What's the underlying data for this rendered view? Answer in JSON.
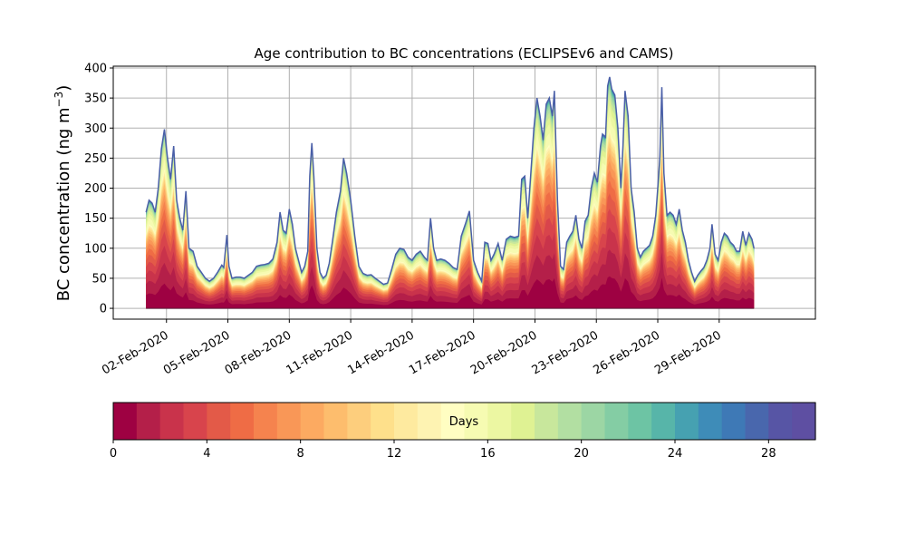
{
  "chart_data": {
    "type": "area",
    "title": "Age contribution to BC concentrations (ECLIPSEv6 and CAMS)",
    "ylabel": "BC concentration (ng m",
    "ylabel_sup": "−3",
    "ylabel_close": ")",
    "xlabel": "",
    "ylim": [
      -18,
      403
    ],
    "yticks": [
      0,
      50,
      100,
      150,
      200,
      250,
      300,
      350,
      400
    ],
    "xlim": [
      -1.6,
      32.7
    ],
    "xticks": [
      {
        "day": 1,
        "label": "02-Feb-2020"
      },
      {
        "day": 4,
        "label": "05-Feb-2020"
      },
      {
        "day": 7,
        "label": "08-Feb-2020"
      },
      {
        "day": 10,
        "label": "11-Feb-2020"
      },
      {
        "day": 13,
        "label": "14-Feb-2020"
      },
      {
        "day": 16,
        "label": "17-Feb-2020"
      },
      {
        "day": 19,
        "label": "20-Feb-2020"
      },
      {
        "day": 22,
        "label": "23-Feb-2020"
      },
      {
        "day": 25,
        "label": "26-Feb-2020"
      },
      {
        "day": 28,
        "label": "29-Feb-2020"
      }
    ],
    "grid": true,
    "x_unit": "days from 01-Feb-2020",
    "total": [
      [
        0.0,
        160
      ],
      [
        0.15,
        180
      ],
      [
        0.3,
        175
      ],
      [
        0.45,
        160
      ],
      [
        0.6,
        200
      ],
      [
        0.75,
        265
      ],
      [
        0.9,
        298
      ],
      [
        1.05,
        250
      ],
      [
        1.2,
        215
      ],
      [
        1.35,
        270
      ],
      [
        1.5,
        180
      ],
      [
        1.65,
        150
      ],
      [
        1.8,
        130
      ],
      [
        1.95,
        195
      ],
      [
        2.1,
        100
      ],
      [
        2.3,
        95
      ],
      [
        2.5,
        70
      ],
      [
        2.7,
        60
      ],
      [
        2.9,
        50
      ],
      [
        3.1,
        45
      ],
      [
        3.3,
        50
      ],
      [
        3.5,
        60
      ],
      [
        3.7,
        72
      ],
      [
        3.8,
        68
      ],
      [
        3.95,
        122
      ],
      [
        4.05,
        70
      ],
      [
        4.2,
        50
      ],
      [
        4.4,
        52
      ],
      [
        4.6,
        52
      ],
      [
        4.8,
        50
      ],
      [
        5.0,
        55
      ],
      [
        5.2,
        60
      ],
      [
        5.4,
        70
      ],
      [
        5.6,
        72
      ],
      [
        5.8,
        73
      ],
      [
        6.0,
        75
      ],
      [
        6.2,
        82
      ],
      [
        6.4,
        110
      ],
      [
        6.55,
        160
      ],
      [
        6.7,
        130
      ],
      [
        6.85,
        125
      ],
      [
        7.0,
        165
      ],
      [
        7.15,
        140
      ],
      [
        7.3,
        100
      ],
      [
        7.45,
        80
      ],
      [
        7.6,
        60
      ],
      [
        7.75,
        70
      ],
      [
        7.9,
        95
      ],
      [
        8.0,
        220
      ],
      [
        8.1,
        275
      ],
      [
        8.2,
        220
      ],
      [
        8.35,
        100
      ],
      [
        8.5,
        60
      ],
      [
        8.65,
        50
      ],
      [
        8.8,
        55
      ],
      [
        8.95,
        75
      ],
      [
        9.1,
        110
      ],
      [
        9.3,
        160
      ],
      [
        9.5,
        195
      ],
      [
        9.65,
        250
      ],
      [
        9.8,
        225
      ],
      [
        10.0,
        180
      ],
      [
        10.2,
        120
      ],
      [
        10.4,
        70
      ],
      [
        10.6,
        58
      ],
      [
        10.8,
        55
      ],
      [
        11.0,
        56
      ],
      [
        11.2,
        50
      ],
      [
        11.4,
        45
      ],
      [
        11.6,
        40
      ],
      [
        11.8,
        42
      ],
      [
        12.0,
        65
      ],
      [
        12.2,
        90
      ],
      [
        12.4,
        100
      ],
      [
        12.6,
        98
      ],
      [
        12.8,
        85
      ],
      [
        13.0,
        80
      ],
      [
        13.2,
        90
      ],
      [
        13.4,
        95
      ],
      [
        13.6,
        85
      ],
      [
        13.75,
        80
      ],
      [
        13.9,
        150
      ],
      [
        14.05,
        100
      ],
      [
        14.2,
        80
      ],
      [
        14.4,
        82
      ],
      [
        14.6,
        80
      ],
      [
        14.8,
        75
      ],
      [
        15.0,
        68
      ],
      [
        15.2,
        65
      ],
      [
        15.4,
        120
      ],
      [
        15.6,
        140
      ],
      [
        15.8,
        162
      ],
      [
        16.0,
        80
      ],
      [
        16.2,
        60
      ],
      [
        16.4,
        45
      ],
      [
        16.55,
        110
      ],
      [
        16.7,
        108
      ],
      [
        16.85,
        80
      ],
      [
        17.0,
        90
      ],
      [
        17.2,
        108
      ],
      [
        17.4,
        80
      ],
      [
        17.6,
        115
      ],
      [
        17.8,
        120
      ],
      [
        18.0,
        118
      ],
      [
        18.2,
        120
      ],
      [
        18.35,
        215
      ],
      [
        18.5,
        220
      ],
      [
        18.65,
        150
      ],
      [
        18.8,
        225
      ],
      [
        18.95,
        300
      ],
      [
        19.1,
        350
      ],
      [
        19.25,
        320
      ],
      [
        19.4,
        280
      ],
      [
        19.55,
        340
      ],
      [
        19.7,
        350
      ],
      [
        19.85,
        320
      ],
      [
        19.95,
        362
      ],
      [
        20.1,
        180
      ],
      [
        20.25,
        70
      ],
      [
        20.4,
        65
      ],
      [
        20.55,
        110
      ],
      [
        20.7,
        120
      ],
      [
        20.85,
        128
      ],
      [
        21.0,
        155
      ],
      [
        21.15,
        115
      ],
      [
        21.3,
        100
      ],
      [
        21.45,
        145
      ],
      [
        21.6,
        155
      ],
      [
        21.75,
        200
      ],
      [
        21.9,
        225
      ],
      [
        22.05,
        210
      ],
      [
        22.2,
        270
      ],
      [
        22.3,
        290
      ],
      [
        22.45,
        285
      ],
      [
        22.55,
        370
      ],
      [
        22.65,
        385
      ],
      [
        22.75,
        365
      ],
      [
        22.9,
        355
      ],
      [
        23.05,
        300
      ],
      [
        23.2,
        200
      ],
      [
        23.3,
        270
      ],
      [
        23.4,
        362
      ],
      [
        23.55,
        320
      ],
      [
        23.7,
        200
      ],
      [
        23.85,
        160
      ],
      [
        24.0,
        100
      ],
      [
        24.15,
        85
      ],
      [
        24.3,
        95
      ],
      [
        24.45,
        100
      ],
      [
        24.6,
        105
      ],
      [
        24.75,
        120
      ],
      [
        24.9,
        155
      ],
      [
        25.0,
        200
      ],
      [
        25.1,
        250
      ],
      [
        25.2,
        368
      ],
      [
        25.3,
        225
      ],
      [
        25.45,
        155
      ],
      [
        25.6,
        160
      ],
      [
        25.75,
        155
      ],
      [
        25.9,
        140
      ],
      [
        26.05,
        165
      ],
      [
        26.2,
        130
      ],
      [
        26.35,
        110
      ],
      [
        26.5,
        80
      ],
      [
        26.65,
        60
      ],
      [
        26.8,
        45
      ],
      [
        26.95,
        55
      ],
      [
        27.1,
        62
      ],
      [
        27.25,
        68
      ],
      [
        27.4,
        80
      ],
      [
        27.55,
        100
      ],
      [
        27.65,
        140
      ],
      [
        27.8,
        90
      ],
      [
        27.95,
        80
      ],
      [
        28.1,
        110
      ],
      [
        28.25,
        125
      ],
      [
        28.4,
        120
      ],
      [
        28.55,
        110
      ],
      [
        28.7,
        105
      ],
      [
        28.85,
        95
      ],
      [
        29.0,
        95
      ],
      [
        29.15,
        128
      ],
      [
        29.3,
        105
      ],
      [
        29.45,
        125
      ],
      [
        29.6,
        115
      ],
      [
        29.7,
        100
      ]
    ],
    "colorbar": {
      "label": "Days",
      "ticks": [
        0,
        4,
        8,
        12,
        16,
        20,
        24,
        28
      ],
      "range": [
        0,
        30
      ],
      "colors": [
        "#9e0142",
        "#b41f49",
        "#c9334b",
        "#d8444c",
        "#e35a48",
        "#ef6c45",
        "#f5834e",
        "#f99757",
        "#fcaa61",
        "#fdbd6d",
        "#fdce7d",
        "#fee08b",
        "#feea9f",
        "#fef3b2",
        "#fffec2",
        "#f6fbb2",
        "#ecf7a2",
        "#dff293",
        "#c8e79c",
        "#b2dfa2",
        "#9cd6a4",
        "#84cda4",
        "#6dc4a4",
        "#57b5a9",
        "#46a1b1",
        "#3e8cb8",
        "#3e79b6",
        "#4967ad",
        "#5755a5",
        "#5e4fa2"
      ],
      "outline": "#4a5fa8"
    }
  }
}
